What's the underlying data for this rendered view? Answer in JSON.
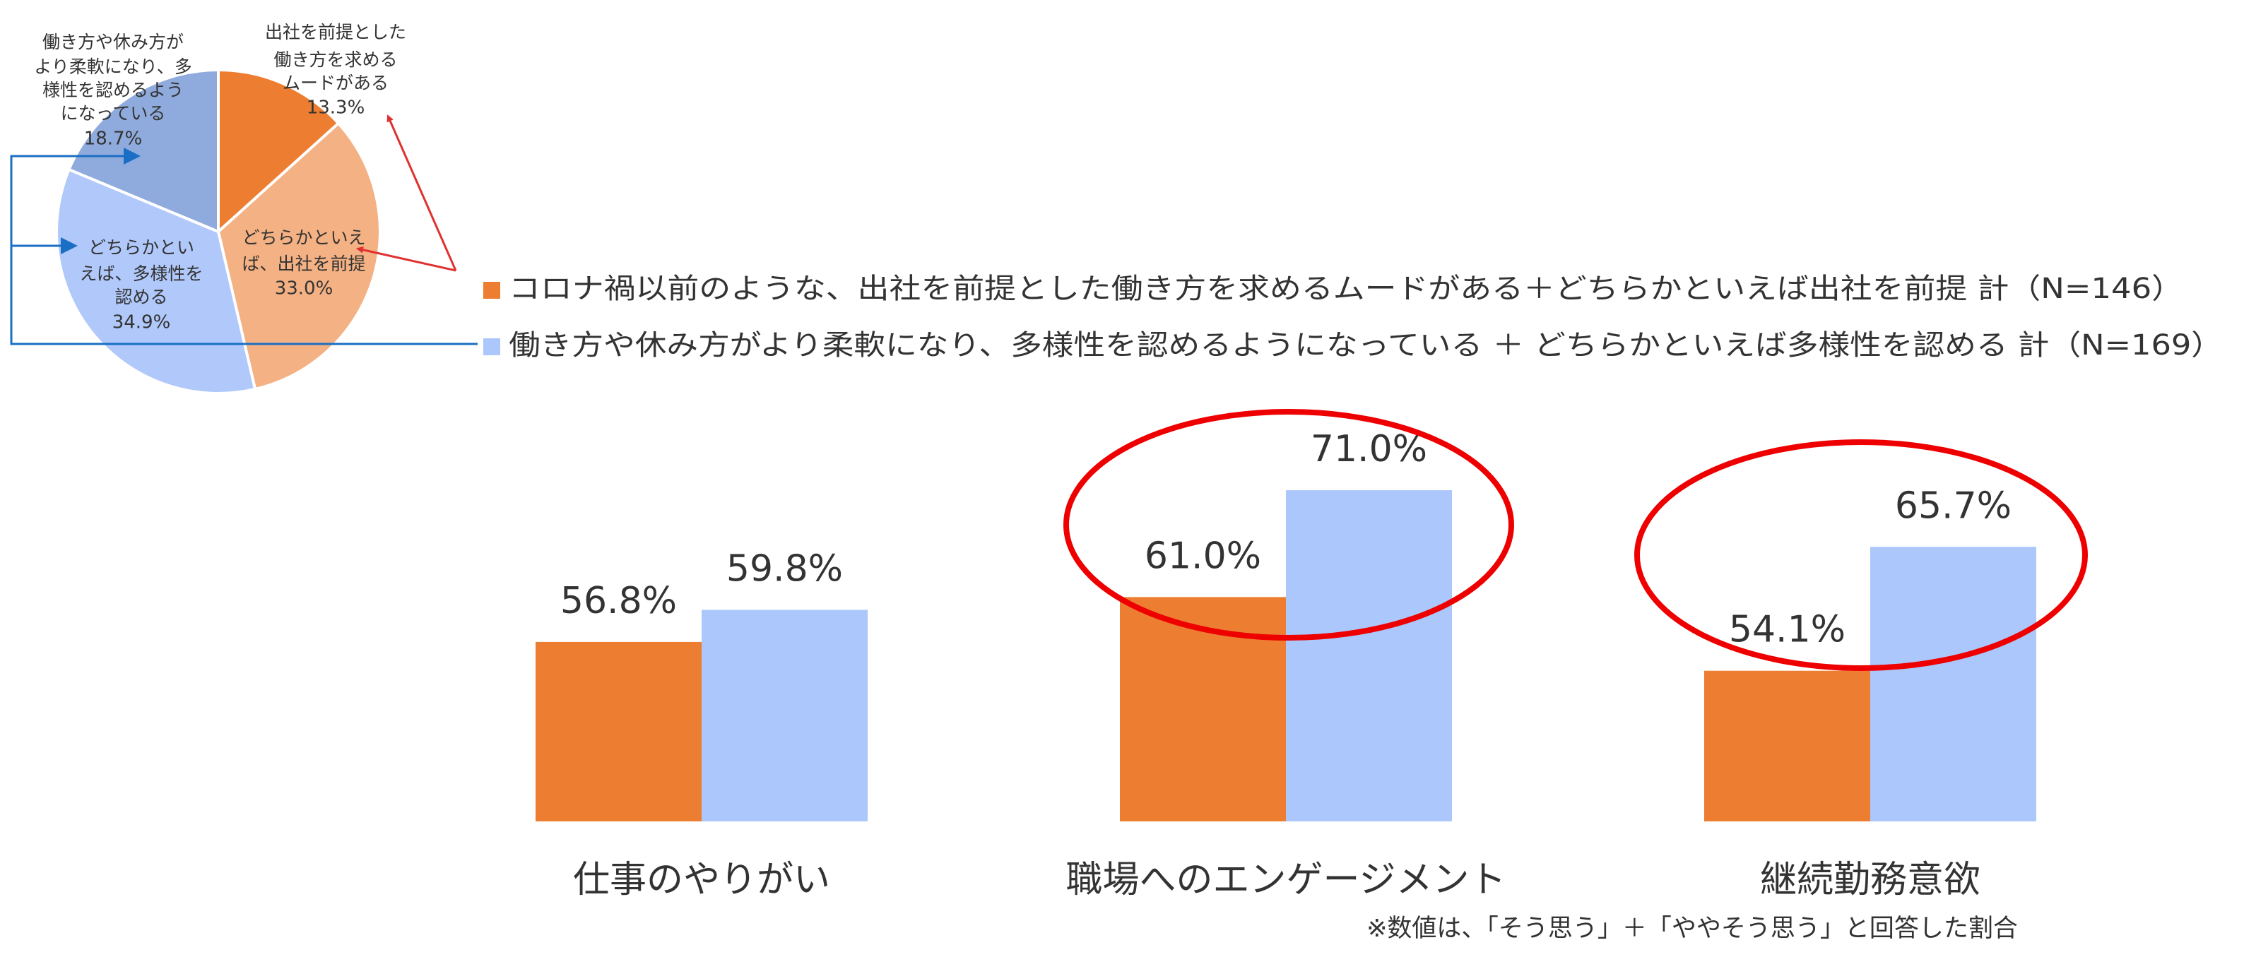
{
  "chart_data": [
    {
      "type": "pie",
      "labels": [
        [
          "出社を前提とした",
          "働き方を求める",
          "ムードがある"
        ],
        [
          "どちらかといえ",
          "ば、出社を前提"
        ],
        [
          "どちらかとい",
          "えば、多様性を",
          "認める"
        ],
        [
          "働き方や休み方が",
          "より柔軟になり、多",
          "様性を認めるよう",
          "になっている"
        ]
      ],
      "values": [
        13.3,
        33.0,
        34.9,
        18.7
      ],
      "value_labels": [
        "13.3%",
        "33.0%",
        "34.9%",
        "18.7%"
      ],
      "colors": [
        "#ed7d31",
        "#f4b183",
        "#b0c8fa",
        "#8faadc"
      ]
    },
    {
      "type": "bar",
      "categories": [
        "仕事のやりがい",
        "職場へのエンゲージメント",
        "継続勤務意欲"
      ],
      "series": [
        {
          "name": "コロナ禍以前のような、出社を前提とした働き方を求めるムードがある＋どちらかといえば出社を前提 計（N=146）",
          "color": "#ed7d31",
          "values": [
            56.8,
            61.0,
            54.1
          ],
          "value_labels": [
            "56.8%",
            "61.0%",
            "54.1%"
          ]
        },
        {
          "name": "働き方や休み方がより柔軟になり、多様性を認めるようになっている ＋ どちらかといえば多様性を認める 計（N=169）",
          "color": "#abc7fb",
          "values": [
            59.8,
            71.0,
            65.7
          ],
          "value_labels": [
            "59.8%",
            "71.0%",
            "65.7%"
          ]
        }
      ],
      "ylim": [
        40,
        80
      ],
      "note": "※数値は、「そう思う」＋「ややそう思う」と回答した割合"
    }
  ]
}
